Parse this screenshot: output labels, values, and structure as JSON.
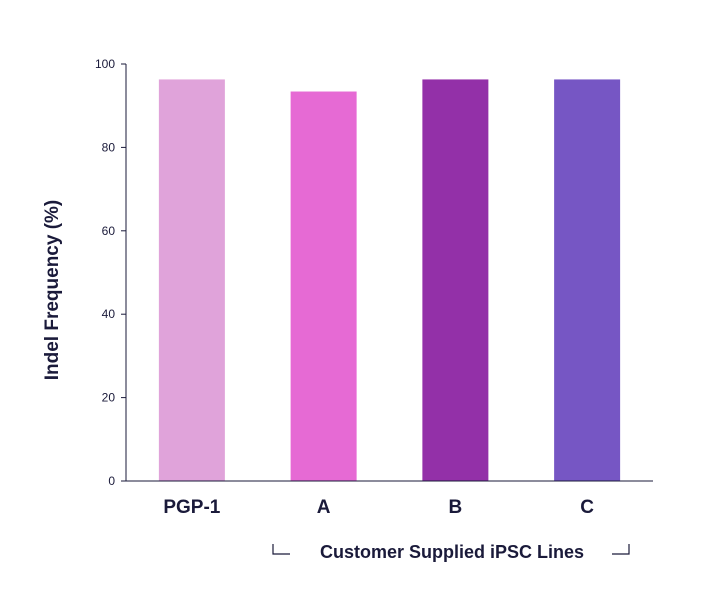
{
  "chart_data": {
    "type": "bar",
    "categories": [
      "PGP-1",
      "A",
      "B",
      "C"
    ],
    "values": [
      96.3,
      93.4,
      96.3,
      96.3
    ],
    "colors": [
      "#e0a3da",
      "#e66ad4",
      "#9330a8",
      "#7656c4"
    ],
    "ylabel": "Indel Frequency (%)",
    "group_label": "Customer Supplied iPSC Lines",
    "ylim": [
      0,
      100
    ],
    "yticks": [
      0,
      20,
      40,
      60,
      80,
      100
    ],
    "grid": false,
    "legend": "none"
  }
}
